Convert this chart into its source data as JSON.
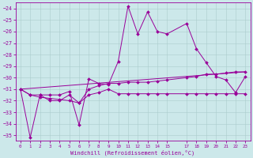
{
  "xlabel": "Windchill (Refroidissement éolien,°C)",
  "bg_color": "#cce8ea",
  "grid_color": "#aacccc",
  "line_color": "#990099",
  "xlim": [
    -0.5,
    23.5
  ],
  "ylim": [
    -35.5,
    -23.5
  ],
  "yticks": [
    -35,
    -34,
    -33,
    -32,
    -31,
    -30,
    -29,
    -28,
    -27,
    -26,
    -25,
    -24
  ],
  "xticks": [
    0,
    1,
    2,
    3,
    4,
    5,
    6,
    7,
    8,
    9,
    10,
    11,
    12,
    13,
    14,
    15,
    17,
    18,
    19,
    20,
    21,
    22,
    23
  ],
  "series": [
    {
      "x": [
        0,
        1,
        2,
        3,
        4,
        5,
        6,
        7,
        8,
        9,
        10,
        11,
        12,
        13,
        14,
        15,
        17,
        18,
        19,
        20,
        21,
        22,
        23
      ],
      "y": [
        -31.0,
        -35.2,
        -31.5,
        -31.5,
        -31.5,
        -31.2,
        -34.1,
        -30.1,
        -30.5,
        -30.6,
        -28.6,
        -23.8,
        -26.2,
        -24.3,
        -26.0,
        -26.2,
        -25.3,
        -27.5,
        -28.7,
        -29.9,
        -30.2,
        -31.3,
        -29.9
      ]
    },
    {
      "x": [
        0,
        1,
        2,
        3,
        4,
        5,
        6,
        7,
        8,
        9,
        10,
        11,
        12,
        13,
        14,
        15,
        17,
        18,
        19,
        20,
        21,
        22,
        23
      ],
      "y": [
        -31.0,
        -31.5,
        -31.5,
        -32.0,
        -32.0,
        -31.5,
        -32.2,
        -31.0,
        -30.7,
        -30.5,
        -30.5,
        -30.4,
        -30.4,
        -30.4,
        -30.3,
        -30.2,
        -30.0,
        -29.9,
        -29.7,
        -29.7,
        -29.6,
        -29.5,
        -29.5
      ]
    },
    {
      "x": [
        0,
        1,
        2,
        3,
        4,
        5,
        6,
        7,
        8,
        9,
        10,
        11,
        12,
        13,
        14,
        15,
        17,
        18,
        19,
        20,
        21,
        22,
        23
      ],
      "y": [
        -31.0,
        -31.5,
        -31.7,
        -31.8,
        -31.9,
        -32.0,
        -32.2,
        -31.5,
        -31.3,
        -31.0,
        -31.4,
        -31.4,
        -31.4,
        -31.4,
        -31.4,
        -31.4,
        -31.4,
        -31.4,
        -31.4,
        -31.4,
        -31.4,
        -31.4,
        -31.4
      ]
    },
    {
      "x": [
        0,
        23
      ],
      "y": [
        -31.0,
        -29.5
      ]
    }
  ]
}
